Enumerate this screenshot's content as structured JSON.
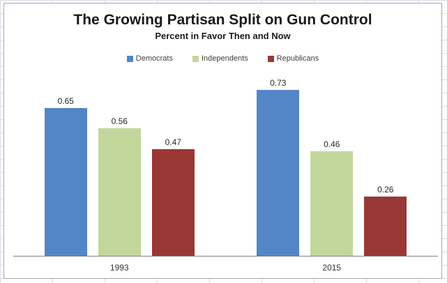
{
  "chart_data": {
    "type": "bar",
    "title": "The Growing Partisan Split on Gun Control",
    "subtitle": "Percent in Favor Then and Now",
    "categories": [
      "1993",
      "2015"
    ],
    "series": [
      {
        "name": "Democrats",
        "color": "#5386C6",
        "values": [
          0.65,
          0.73
        ]
      },
      {
        "name": "Independents",
        "color": "#C3D69B",
        "values": [
          0.56,
          0.46
        ]
      },
      {
        "name": "Republicans",
        "color": "#993735",
        "values": [
          0.47,
          0.26
        ]
      }
    ],
    "data_labels": [
      "0.65",
      "0.56",
      "0.47",
      "0.73",
      "0.46",
      "0.26"
    ],
    "ylim": [
      0,
      0.8
    ],
    "legend_position": "top",
    "grid": false,
    "axis_color": "#808080",
    "pixels_per_unit": 326
  }
}
